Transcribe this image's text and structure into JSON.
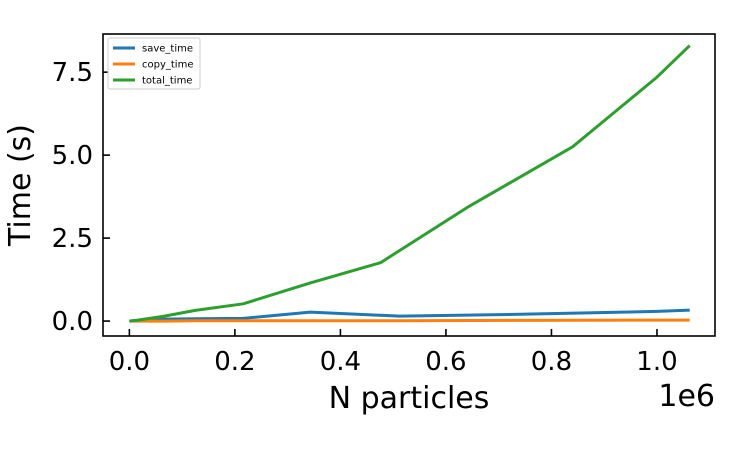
{
  "chart_data": {
    "type": "line",
    "xlabel": "N particles",
    "ylabel": "Time (s)",
    "x_offset_label": "1e6",
    "xlim": [
      -0.05,
      1.11
    ],
    "ylim": [
      -0.45,
      8.65
    ],
    "x_ticks": [
      0.0,
      0.2,
      0.4,
      0.6,
      0.8,
      1.0
    ],
    "x_tick_labels": [
      "0.0",
      "0.2",
      "0.4",
      "0.6",
      "0.8",
      "1.0"
    ],
    "y_ticks": [
      0.0,
      2.5,
      5.0,
      7.5
    ],
    "y_tick_labels": [
      "0.0",
      "2.5",
      "5.0",
      "7.5"
    ],
    "grid": false,
    "legend_position": "top-left",
    "series": [
      {
        "name": "save_time",
        "color": "#1f77b4",
        "x": [
          0.0,
          0.016,
          0.064,
          0.125,
          0.216,
          0.343,
          0.512,
          0.729,
          1.0,
          1.062
        ],
        "y": [
          0.0,
          0.02,
          0.06,
          0.07,
          0.08,
          0.27,
          0.15,
          0.2,
          0.29,
          0.33
        ]
      },
      {
        "name": "copy_time",
        "color": "#ff7f0e",
        "x": [
          0.0,
          0.016,
          0.064,
          0.125,
          0.216,
          0.343,
          0.512,
          0.729,
          1.0,
          1.062
        ],
        "y": [
          0.0,
          0.0,
          0.0,
          0.01,
          0.01,
          0.01,
          0.01,
          0.02,
          0.03,
          0.03
        ]
      },
      {
        "name": "total_time",
        "color": "#2ca02c",
        "x": [
          0.0,
          0.016,
          0.064,
          0.125,
          0.216,
          0.343,
          0.476,
          0.64,
          0.84,
          1.0,
          1.062
        ],
        "y": [
          0.0,
          0.03,
          0.14,
          0.32,
          0.52,
          1.15,
          1.76,
          3.42,
          5.25,
          7.35,
          8.3
        ]
      }
    ]
  }
}
